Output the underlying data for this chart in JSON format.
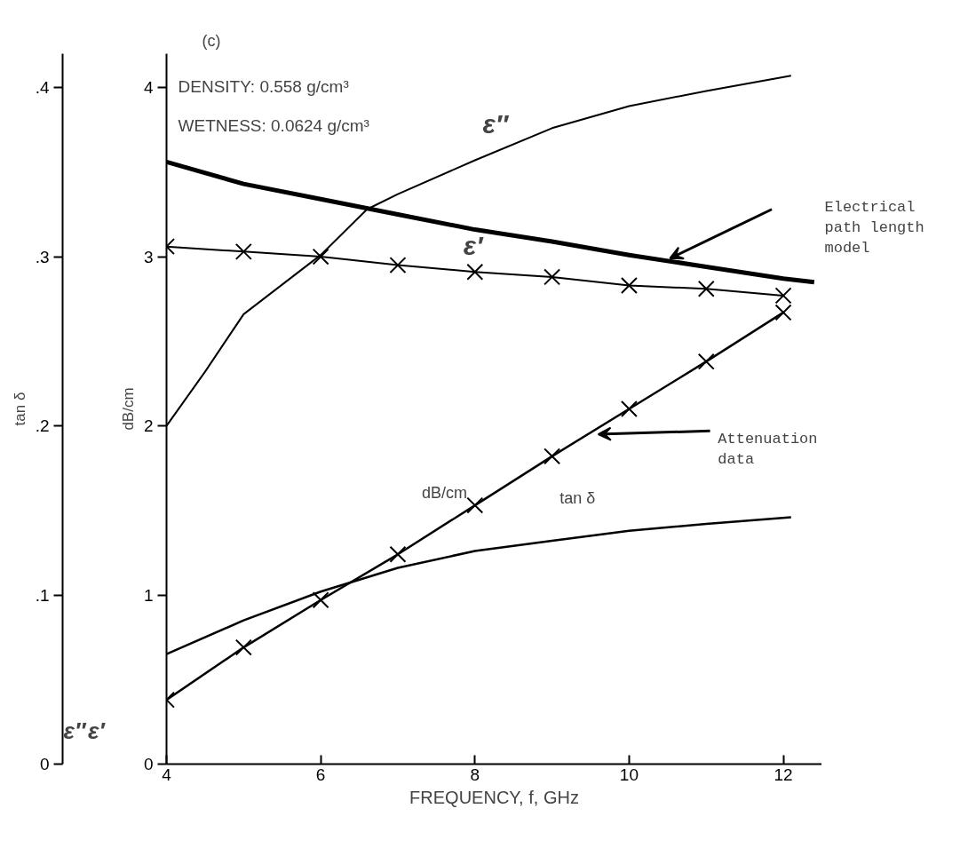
{
  "chart_data": {
    "type": "line",
    "title": "(c)",
    "xlabel": "FREQUENCY, f, GHz",
    "ylabel": "dB/cm",
    "y2label": "tan δ",
    "xlim": [
      4,
      12.5
    ],
    "xticks": [
      4,
      6,
      8,
      10,
      12
    ],
    "ylim": [
      0,
      4.2
    ],
    "yticks": [
      0,
      1,
      2,
      3,
      4
    ],
    "y2lim": [
      0,
      0.42
    ],
    "y2ticks": [
      0,
      {
        "value": 0.1,
        "label": ".1"
      },
      {
        "value": 0.2,
        "label": ".2"
      },
      {
        "value": 0.3,
        "label": ".3"
      },
      {
        "value": 0.4,
        "label": ".4"
      }
    ],
    "grid": false,
    "legend": false,
    "line_style": "solid",
    "series": [
      {
        "name": "ε″",
        "color": "#000000",
        "axis": "y2",
        "marker": "none",
        "x": [
          4,
          4.5,
          5,
          6,
          6.6,
          7,
          8,
          9,
          10,
          11,
          12.1
        ],
        "values": [
          0.2,
          0.232,
          0.266,
          0.301,
          0.328,
          0.337,
          0.357,
          0.376,
          0.389,
          0.398,
          0.407
        ]
      },
      {
        "name": "ε′",
        "color": "#000000",
        "marker": "cross",
        "x": [
          4,
          5,
          6,
          7,
          8,
          9,
          10,
          11,
          12
        ],
        "values": [
          3.06,
          3.03,
          3.0,
          2.95,
          2.91,
          2.88,
          2.83,
          2.81,
          2.77
        ]
      },
      {
        "name": "Electrical path length model",
        "color": "#000000",
        "marker": "none",
        "x": [
          4,
          5,
          6,
          7,
          8,
          9,
          10,
          11,
          12,
          12.4
        ],
        "values": [
          3.56,
          3.43,
          3.34,
          3.25,
          3.16,
          3.09,
          3.01,
          2.94,
          2.87,
          2.85
        ]
      },
      {
        "name": "dB/cm",
        "color": "#000000",
        "marker": "cross",
        "x": [
          4,
          5,
          6,
          7,
          8,
          9,
          10,
          11,
          12
        ],
        "values": [
          0.38,
          0.69,
          0.97,
          1.24,
          1.53,
          1.82,
          2.1,
          2.38,
          2.67
        ]
      },
      {
        "name": "tan δ",
        "color": "#000000",
        "axis": "y2",
        "marker": "none",
        "x": [
          4,
          5,
          6,
          7,
          8,
          9,
          10,
          11,
          12.1
        ],
        "values": [
          0.065,
          0.085,
          0.102,
          0.116,
          0.126,
          0.132,
          0.138,
          0.142,
          0.146
        ]
      }
    ],
    "annotations": [
      "DENSITY: 0.558 g/cm³",
      "WETNESS: 0.0624 g/cm³",
      "Attenuation data",
      "ε″",
      "ε′"
    ]
  }
}
